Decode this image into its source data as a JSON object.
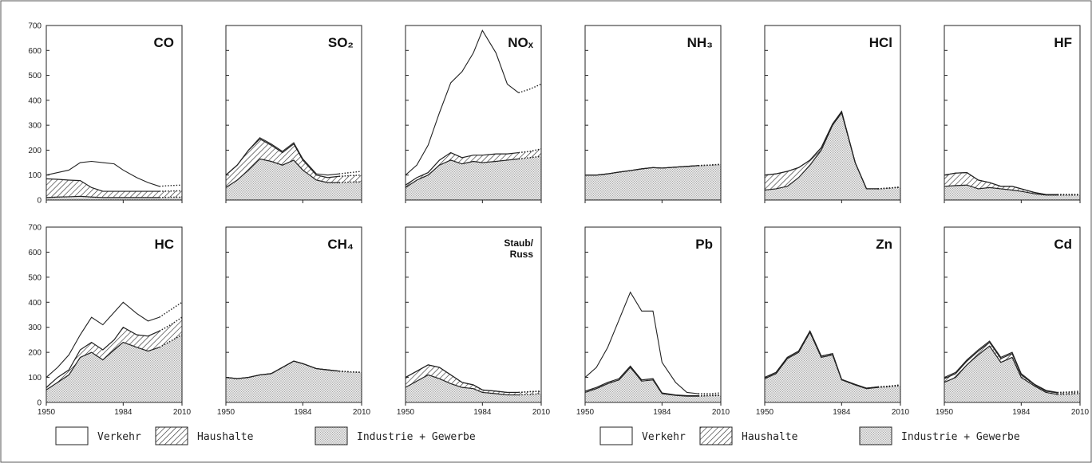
{
  "chart_data": {
    "type": "area",
    "stacked": true,
    "x": [
      1950,
      1955,
      1960,
      1965,
      1970,
      1975,
      1980,
      1984,
      1990,
      1995,
      2000,
      2005,
      2010
    ],
    "projection_start": 2000,
    "xlim": [
      1950,
      2010
    ],
    "ylim": [
      0,
      700
    ],
    "xticks": [
      "1950",
      "1984",
      "2010"
    ],
    "yticks": [
      "0",
      "100",
      "200",
      "300",
      "400",
      "500",
      "600",
      "700"
    ],
    "grid": false,
    "legend": {
      "placement": "bottom",
      "entries": [
        {
          "label": "Verkehr",
          "pattern": "white"
        },
        {
          "label": "Haushalte",
          "pattern": "hatch"
        },
        {
          "label": "Industrie + Gewerbe",
          "pattern": "dots"
        }
      ]
    },
    "panels": [
      {
        "title": "CO",
        "industrie": [
          10,
          12,
          13,
          15,
          12,
          10,
          10,
          10,
          10,
          10,
          10,
          11,
          11
        ],
        "haushalte": [
          85,
          83,
          80,
          78,
          50,
          35,
          35,
          35,
          35,
          35,
          35,
          36,
          37
        ],
        "total": [
          100,
          110,
          120,
          150,
          155,
          150,
          145,
          120,
          90,
          70,
          55,
          58,
          60
        ]
      },
      {
        "title": "SO₂",
        "industrie": [
          50,
          80,
          120,
          165,
          155,
          140,
          160,
          120,
          80,
          70,
          70,
          72,
          73
        ],
        "haushalte": [
          100,
          140,
          200,
          245,
          220,
          190,
          225,
          160,
          100,
          90,
          95,
          98,
          100
        ],
        "total": [
          100,
          140,
          200,
          250,
          225,
          195,
          230,
          165,
          105,
          100,
          105,
          110,
          115
        ]
      },
      {
        "title": "NOₓ",
        "industrie": [
          50,
          80,
          100,
          140,
          160,
          145,
          155,
          150,
          155,
          160,
          165,
          170,
          175
        ],
        "haushalte": [
          60,
          90,
          110,
          160,
          190,
          170,
          180,
          180,
          185,
          185,
          190,
          195,
          205
        ],
        "total": [
          100,
          140,
          220,
          350,
          470,
          515,
          590,
          680,
          590,
          465,
          430,
          445,
          465
        ]
      },
      {
        "title": "NH₃",
        "industrie": [
          100,
          100,
          105,
          112,
          118,
          125,
          130,
          128,
          132,
          135,
          138,
          140,
          143
        ],
        "haushalte": [
          100,
          100,
          105,
          112,
          118,
          125,
          130,
          128,
          132,
          135,
          138,
          140,
          143
        ],
        "total": [
          100,
          100,
          105,
          112,
          118,
          125,
          130,
          128,
          132,
          135,
          138,
          140,
          143
        ]
      },
      {
        "title": "HCl",
        "industrie": [
          40,
          45,
          55,
          90,
          140,
          200,
          300,
          350,
          150,
          45,
          45,
          48,
          52
        ],
        "haushalte": [
          100,
          105,
          115,
          130,
          160,
          210,
          305,
          355,
          150,
          45,
          45,
          48,
          52
        ],
        "total": [
          100,
          105,
          115,
          130,
          160,
          210,
          305,
          355,
          150,
          45,
          45,
          48,
          52
        ]
      },
      {
        "title": "HF",
        "industrie": [
          55,
          58,
          60,
          45,
          50,
          45,
          40,
          35,
          25,
          20,
          20,
          20,
          20
        ],
        "haushalte": [
          100,
          108,
          110,
          80,
          70,
          55,
          55,
          45,
          30,
          22,
          22,
          22,
          22
        ],
        "total": [
          100,
          108,
          110,
          80,
          70,
          55,
          55,
          45,
          30,
          22,
          22,
          22,
          22
        ]
      },
      {
        "title": "HC",
        "industrie": [
          50,
          80,
          110,
          180,
          200,
          170,
          210,
          240,
          220,
          205,
          220,
          245,
          270
        ],
        "haushalte": [
          60,
          100,
          130,
          210,
          240,
          210,
          250,
          300,
          270,
          265,
          285,
          310,
          340
        ],
        "total": [
          100,
          140,
          190,
          270,
          340,
          310,
          360,
          400,
          355,
          325,
          340,
          370,
          400
        ]
      },
      {
        "title": "CH₄",
        "industrie": [
          100,
          95,
          100,
          110,
          115,
          140,
          165,
          155,
          135,
          130,
          125,
          122,
          120
        ],
        "haushalte": [
          100,
          95,
          100,
          110,
          115,
          140,
          165,
          155,
          135,
          130,
          125,
          122,
          120
        ],
        "total": [
          100,
          95,
          100,
          110,
          115,
          140,
          165,
          155,
          135,
          130,
          125,
          122,
          120
        ]
      },
      {
        "title": "Staub/ Russ",
        "industrie": [
          60,
          85,
          110,
          95,
          75,
          60,
          55,
          40,
          35,
          30,
          30,
          32,
          35
        ],
        "haushalte": [
          100,
          125,
          150,
          140,
          110,
          80,
          70,
          50,
          45,
          40,
          40,
          43,
          45
        ],
        "total": [
          100,
          125,
          150,
          140,
          110,
          80,
          70,
          50,
          45,
          40,
          40,
          43,
          45
        ]
      },
      {
        "title": "Pb",
        "industrie": [
          40,
          55,
          75,
          90,
          140,
          85,
          90,
          35,
          28,
          25,
          25,
          27,
          28
        ],
        "haushalte": [
          45,
          60,
          80,
          95,
          145,
          90,
          95,
          38,
          30,
          27,
          27,
          29,
          30
        ],
        "total": [
          100,
          140,
          220,
          330,
          440,
          365,
          365,
          160,
          80,
          40,
          35,
          35,
          38
        ]
      },
      {
        "title": "Zn",
        "industrie": [
          95,
          115,
          175,
          200,
          280,
          180,
          190,
          90,
          70,
          55,
          60,
          63,
          67
        ],
        "haushalte": [
          100,
          120,
          180,
          205,
          285,
          185,
          195,
          92,
          72,
          57,
          62,
          65,
          70
        ],
        "total": [
          100,
          120,
          180,
          205,
          285,
          185,
          195,
          92,
          72,
          57,
          62,
          65,
          70
        ]
      },
      {
        "title": "Cd",
        "industrie": [
          80,
          100,
          150,
          190,
          225,
          160,
          180,
          100,
          65,
          40,
          32,
          33,
          35
        ],
        "haushalte": [
          95,
          115,
          165,
          205,
          240,
          175,
          195,
          110,
          70,
          45,
          38,
          39,
          40
        ],
        "total": [
          100,
          120,
          170,
          210,
          245,
          180,
          200,
          115,
          72,
          48,
          40,
          42,
          45
        ]
      }
    ]
  }
}
